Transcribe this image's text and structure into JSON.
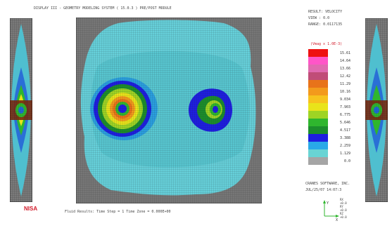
{
  "header": {
    "title": "DISPLAY III - GEOMETRY MODELING SYSTEM ( 15.0.3 )   PRE/POST MODULE"
  },
  "result": {
    "label": "RESULT: VELOCITY",
    "view": "VIEW : 0.0",
    "range": "RANGE: 0.0117135",
    "legend_title": "(Vmag x 1.0E-3)"
  },
  "legend": {
    "entries": [
      {
        "value": "15.61",
        "color": "#ee1111"
      },
      {
        "value": "14.64",
        "color": "#ff55c8"
      },
      {
        "value": "13.66",
        "color": "#e06ab0"
      },
      {
        "value": "12.42",
        "color": "#c04d78"
      },
      {
        "value": "11.29",
        "color": "#e8731a"
      },
      {
        "value": "10.16",
        "color": "#f39a1c"
      },
      {
        "value": "9.034",
        "color": "#f7c31e"
      },
      {
        "value": "7.903",
        "color": "#e9e41a"
      },
      {
        "value": "6.775",
        "color": "#9ed424"
      },
      {
        "value": "5.646",
        "color": "#2fb62e"
      },
      {
        "value": "4.517",
        "color": "#1c8e2c"
      },
      {
        "value": "3.388",
        "color": "#1e1ee0"
      },
      {
        "value": "2.259",
        "color": "#29a9e8"
      },
      {
        "value": "1.129",
        "color": "#69d4d4"
      },
      {
        "value": "0.0",
        "color": "#a5a5a5"
      }
    ]
  },
  "company": {
    "name": "CRANES SOFTWARE, INC.",
    "date": "JUL/25/07  14:07:3"
  },
  "footer": {
    "text": "Fluid Results: Time Step =  1  Time Zone =  0.000E+00"
  },
  "logo": {
    "text": "NISA"
  },
  "triad": {
    "lines": [
      "RX",
      "+0.0",
      "RY",
      "+0.0",
      "RZ",
      "+0.0"
    ],
    "axis_labels": [
      "Y",
      "X"
    ]
  }
}
